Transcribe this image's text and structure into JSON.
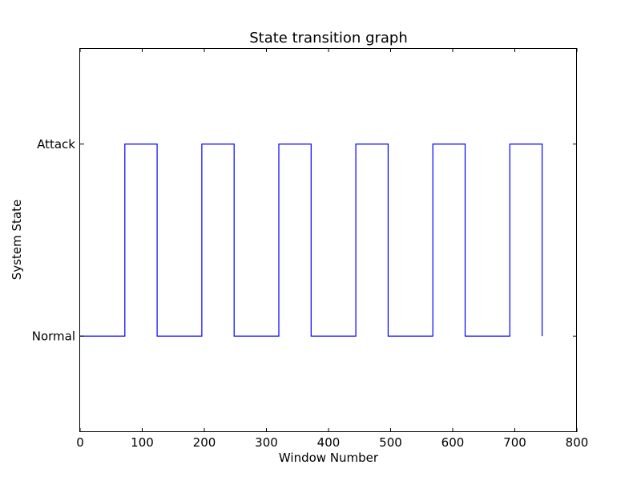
{
  "chart_data": {
    "type": "line",
    "title": "State transition graph",
    "xlabel": "Window Number",
    "ylabel": "System State",
    "xlim": [
      0,
      800
    ],
    "ylim": [
      -0.5,
      1.5
    ],
    "xticks": [
      0,
      100,
      200,
      300,
      400,
      500,
      600,
      700,
      800
    ],
    "yticks": [
      {
        "value": 1,
        "label": "Attack"
      },
      {
        "value": 0,
        "label": "Normal"
      }
    ],
    "grid": false,
    "line_color": "#0000ff",
    "step_where": "post",
    "series": [
      {
        "x": [
          0,
          72,
          124,
          196,
          248,
          320,
          372,
          444,
          496,
          568,
          620,
          692,
          744
        ],
        "y": [
          0,
          1,
          0,
          1,
          0,
          1,
          0,
          1,
          0,
          1,
          0,
          1,
          0
        ]
      }
    ]
  }
}
